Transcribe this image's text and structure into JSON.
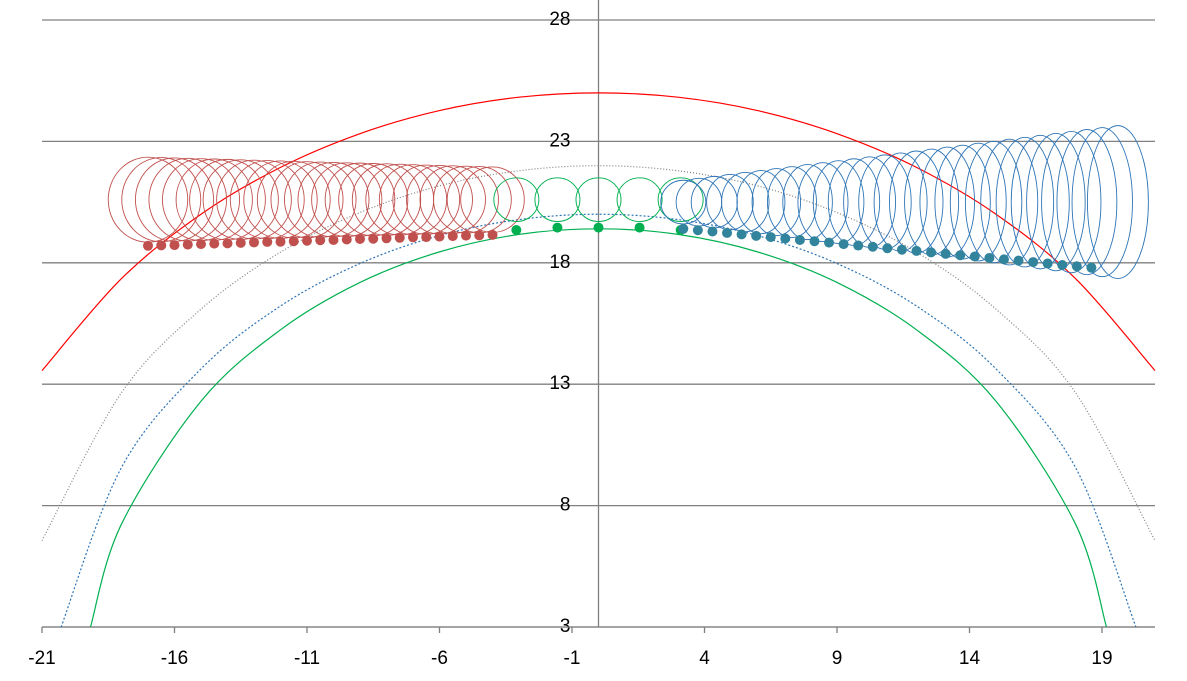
{
  "chart_data": {
    "type": "scatter",
    "xlim": [
      -21,
      21
    ],
    "ylim": [
      3,
      28
    ],
    "xticks": [
      -21,
      -16,
      -11,
      -6,
      -1,
      4,
      9,
      14,
      19
    ],
    "yticks": [
      3,
      8,
      13,
      18,
      23,
      28
    ],
    "grid": "y",
    "axis_color": "#808080",
    "series": [
      {
        "kind": "line",
        "color": "#ff0000",
        "dash": "none",
        "x": [
          -21,
          -18,
          -15,
          -12,
          -9,
          -6,
          -3,
          0,
          3,
          6,
          9,
          12,
          15,
          18,
          21
        ],
        "values": [
          13.56,
          17.35,
          20,
          21.93,
          23.32,
          24.27,
          24.82,
          25,
          24.82,
          24.27,
          23.32,
          21.93,
          20,
          17.35,
          13.56
        ]
      },
      {
        "kind": "line",
        "color": "#7f7f7f",
        "dash": "1 2",
        "x": [
          -21,
          -18,
          -15,
          -12,
          -9,
          -6,
          -3,
          0,
          3,
          6,
          9,
          12,
          15,
          18,
          21
        ],
        "values": [
          6.56,
          12.65,
          16.09,
          18.44,
          20.07,
          21.17,
          21.79,
          22,
          21.79,
          21.17,
          20.07,
          18.44,
          16.09,
          12.65,
          6.56
        ]
      },
      {
        "kind": "line",
        "color": "#2e75b6",
        "dash": "2 2",
        "x": [
          -20.28,
          -18,
          -15,
          -12,
          -9,
          -6,
          -3,
          0,
          3,
          6,
          9,
          12,
          15,
          18,
          20.28
        ],
        "values": [
          3,
          9.57,
          13.63,
          16.22,
          17.97,
          19.12,
          19.78,
          20,
          19.78,
          19.12,
          17.97,
          16.22,
          13.63,
          9.57,
          3
        ]
      },
      {
        "kind": "line",
        "color": "#00b050",
        "dash": "none",
        "x": [
          -19.17,
          -18,
          -15,
          -12,
          -9,
          -6,
          -3,
          0,
          3,
          6,
          9,
          12,
          15,
          18,
          19.17
        ],
        "values": [
          3,
          7.24,
          12.3,
          15.24,
          17.19,
          18.45,
          19.17,
          19.4,
          19.17,
          18.45,
          17.19,
          15.24,
          12.3,
          7.24,
          3
        ]
      },
      {
        "kind": "ellipses",
        "color": "#c0504d",
        "x": [
          -17,
          -16.5,
          -16,
          -15.5,
          -15,
          -14.5,
          -14,
          -13.5,
          -13,
          -12.5,
          -12,
          -11.5,
          -11,
          -10.5,
          -10,
          -9.5,
          -9,
          -8.5,
          -8,
          -7.5,
          -7,
          -6.5,
          -6,
          -5.5,
          -5,
          -4.5,
          -4
        ],
        "values": [
          20.6,
          20.6,
          20.6,
          20.6,
          20.6,
          20.6,
          20.6,
          20.6,
          20.6,
          20.6,
          20.6,
          20.6,
          20.6,
          20.6,
          20.6,
          20.6,
          20.6,
          20.6,
          20.6,
          20.6,
          20.6,
          20.6,
          20.6,
          20.6,
          20.6,
          20.6,
          20.6
        ],
        "widths": [
          3.0,
          2.98,
          2.95,
          2.93,
          2.91,
          2.88,
          2.86,
          2.84,
          2.82,
          2.79,
          2.77,
          2.75,
          2.72,
          2.7,
          2.68,
          2.65,
          2.63,
          2.61,
          2.58,
          2.56,
          2.54,
          2.52,
          2.49,
          2.47,
          2.45,
          2.42,
          2.4
        ],
        "heights": [
          3.5,
          3.47,
          3.44,
          3.41,
          3.38,
          3.35,
          3.32,
          3.28,
          3.25,
          3.22,
          3.19,
          3.16,
          3.13,
          3.1,
          3.07,
          3.04,
          3.01,
          2.98,
          2.95,
          2.92,
          2.88,
          2.85,
          2.82,
          2.79,
          2.76,
          2.73,
          2.7
        ]
      },
      {
        "kind": "points",
        "color": "#c0504d",
        "x": [
          -17,
          -16.5,
          -16,
          -15.5,
          -15,
          -14.5,
          -14,
          -13.5,
          -13,
          -12.5,
          -12,
          -11.5,
          -11,
          -10.5,
          -10,
          -9.5,
          -9,
          -8.5,
          -8,
          -7.5,
          -7,
          -6.5,
          -6,
          -5.5,
          -5,
          -4.5,
          -4
        ],
        "values": [
          18.7,
          18.72,
          18.73,
          18.75,
          18.77,
          18.79,
          18.8,
          18.82,
          18.84,
          18.86,
          18.87,
          18.89,
          18.91,
          18.93,
          18.94,
          18.96,
          18.98,
          18.99,
          19.01,
          19.03,
          19.05,
          19.06,
          19.08,
          19.1,
          19.12,
          19.13,
          19.15
        ]
      },
      {
        "kind": "ellipses",
        "color": "#00b050",
        "x": [
          -3.1,
          -1.55,
          0,
          1.55,
          3.1
        ],
        "values": [
          20.6,
          20.6,
          20.6,
          20.6,
          20.6
        ],
        "widths": [
          1.7,
          1.7,
          1.7,
          1.7,
          1.7
        ],
        "heights": [
          1.8,
          1.8,
          1.8,
          1.8,
          1.8
        ]
      },
      {
        "kind": "points",
        "color": "#00b050",
        "x": [
          -3.1,
          -1.55,
          0,
          1.55,
          3.1
        ],
        "values": [
          19.35,
          19.45,
          19.45,
          19.45,
          19.35
        ]
      },
      {
        "kind": "ellipses",
        "color": "#2e75b6",
        "x": [
          3.2,
          3.79,
          4.37,
          4.96,
          5.54,
          6.13,
          6.71,
          7.3,
          7.89,
          8.47,
          9.06,
          9.64,
          10.23,
          10.81,
          11.4,
          11.99,
          12.57,
          13.16,
          13.74,
          14.33,
          14.91,
          15.5,
          16.09,
          16.67,
          17.26,
          17.84,
          18.43,
          19.01,
          19.6
        ],
        "values": [
          20.5,
          20.5,
          20.5,
          20.5,
          20.5,
          20.5,
          20.5,
          20.5,
          20.5,
          20.5,
          20.5,
          20.5,
          20.5,
          20.5,
          20.5,
          20.5,
          20.5,
          20.5,
          20.5,
          20.5,
          20.5,
          20.5,
          20.5,
          20.5,
          20.5,
          20.5,
          20.5,
          20.5,
          20.5
        ],
        "widths": [
          1.7,
          1.72,
          1.74,
          1.76,
          1.79,
          1.81,
          1.83,
          1.85,
          1.87,
          1.89,
          1.91,
          1.94,
          1.96,
          1.98,
          2,
          2.02,
          2.04,
          2.06,
          2.09,
          2.11,
          2.13,
          2.15,
          2.17,
          2.19,
          2.21,
          2.24,
          2.26,
          2.28,
          2.3
        ],
        "heights": [
          1.8,
          1.96,
          2.12,
          2.28,
          2.44,
          2.6,
          2.76,
          2.92,
          3.09,
          3.25,
          3.41,
          3.57,
          3.73,
          3.89,
          4.05,
          4.21,
          4.37,
          4.53,
          4.69,
          4.85,
          5.01,
          5.18,
          5.34,
          5.5,
          5.66,
          5.82,
          5.98,
          6.14,
          6.3
        ]
      },
      {
        "kind": "points",
        "color": "#31849b",
        "x": [
          3.2,
          3.75,
          4.3,
          4.85,
          5.4,
          5.95,
          6.5,
          7.05,
          7.6,
          8.15,
          8.7,
          9.25,
          9.8,
          10.35,
          10.9,
          11.45,
          12,
          12.55,
          13.1,
          13.65,
          14.2,
          14.75,
          15.3,
          15.85,
          16.4,
          16.95,
          17.5,
          18.05,
          18.6
        ],
        "values": [
          19.4,
          19.34,
          19.29,
          19.23,
          19.17,
          19.11,
          19.06,
          19,
          18.94,
          18.89,
          18.83,
          18.77,
          18.71,
          18.66,
          18.6,
          18.54,
          18.49,
          18.43,
          18.37,
          18.31,
          18.26,
          18.2,
          18.14,
          18.09,
          18.03,
          17.97,
          17.91,
          17.86,
          17.8
        ]
      }
    ]
  }
}
